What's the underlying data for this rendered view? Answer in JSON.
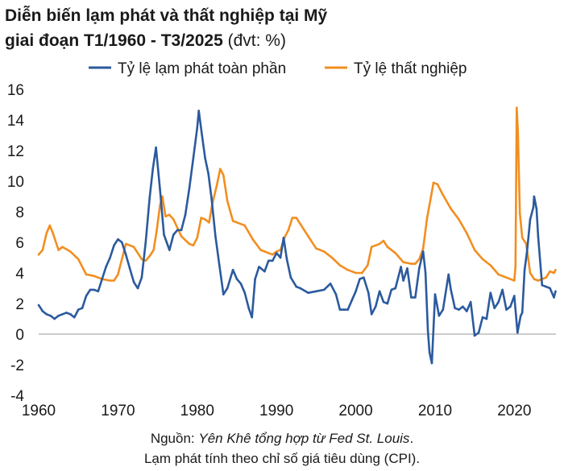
{
  "title": {
    "line1": "Diễn biến lạm phát và thất nghiệp tại Mỹ",
    "line2_bold": "giai đoạn T1/1960 - T3/2025",
    "line2_unit": " (đvt: %)"
  },
  "source": {
    "prefix": "Nguồn: ",
    "italic": "Yên Khê tổng hợp từ Fed St. Louis",
    "suffix": ".",
    "note": "Lạm phát tính theo chỉ số giá tiêu dùng (CPI)."
  },
  "colors": {
    "inflation": "#2b5a9e",
    "unemployment": "#f28e20",
    "zero_line": "#9a9a9a"
  },
  "chart_data": {
    "type": "line",
    "xlim": [
      1960,
      2025.25
    ],
    "ylim": [
      -4,
      16
    ],
    "x_ticks": [
      1960,
      1970,
      1980,
      1990,
      2000,
      2010,
      2020
    ],
    "y_ticks": [
      16,
      14,
      12,
      10,
      8,
      6,
      4,
      2,
      0,
      -2,
      -4
    ],
    "grid": false,
    "legend_position": "top",
    "series": [
      {
        "name": "Tỷ lệ lạm phát toàn phần",
        "color": "#2b5a9e",
        "x": [
          1960.0,
          1960.5,
          1961.0,
          1961.5,
          1962.0,
          1962.5,
          1963.0,
          1963.5,
          1964.0,
          1964.5,
          1965.0,
          1965.5,
          1966.0,
          1966.5,
          1967.0,
          1967.5,
          1968.0,
          1968.5,
          1969.0,
          1969.5,
          1970.0,
          1970.5,
          1971.0,
          1971.5,
          1972.0,
          1972.5,
          1973.0,
          1973.5,
          1974.0,
          1974.4,
          1974.8,
          1975.3,
          1975.8,
          1976.5,
          1977.0,
          1977.5,
          1978.0,
          1978.5,
          1979.0,
          1979.5,
          1980.0,
          1980.2,
          1980.6,
          1981.0,
          1981.4,
          1981.8,
          1982.3,
          1982.8,
          1983.3,
          1983.8,
          1984.5,
          1985.0,
          1985.5,
          1986.0,
          1986.5,
          1986.9,
          1987.3,
          1987.8,
          1988.5,
          1989.0,
          1989.5,
          1990.0,
          1990.5,
          1990.9,
          1991.3,
          1991.8,
          1992.5,
          1993.0,
          1994.0,
          1995.0,
          1996.0,
          1996.8,
          1997.5,
          1998.0,
          1998.5,
          1999.0,
          1999.5,
          2000.0,
          2000.5,
          2001.0,
          2001.6,
          2002.0,
          2002.5,
          2003.0,
          2003.5,
          2004.0,
          2004.5,
          2005.0,
          2005.7,
          2006.0,
          2006.5,
          2007.0,
          2007.5,
          2008.0,
          2008.5,
          2008.8,
          2009.1,
          2009.3,
          2009.6,
          2010.0,
          2010.5,
          2011.0,
          2011.7,
          2012.0,
          2012.5,
          2013.0,
          2013.5,
          2014.0,
          2014.5,
          2015.0,
          2015.5,
          2016.0,
          2016.5,
          2017.0,
          2017.5,
          2018.0,
          2018.5,
          2019.0,
          2019.5,
          2020.0,
          2020.4,
          2020.8,
          2021.0,
          2021.3,
          2021.6,
          2022.0,
          2022.4,
          2022.5,
          2022.8,
          2023.0,
          2023.5,
          2024.0,
          2024.5,
          2025.0,
          2025.2
        ],
        "values": [
          1.9,
          1.5,
          1.3,
          1.2,
          1.0,
          1.2,
          1.3,
          1.4,
          1.3,
          1.1,
          1.6,
          1.7,
          2.5,
          2.9,
          2.9,
          2.8,
          3.6,
          4.4,
          5.0,
          5.8,
          6.2,
          6.0,
          5.2,
          4.3,
          3.4,
          3.0,
          3.7,
          6.0,
          8.9,
          10.8,
          12.2,
          9.5,
          6.5,
          5.5,
          6.5,
          6.8,
          6.8,
          7.8,
          9.5,
          11.5,
          13.5,
          14.6,
          13.0,
          11.5,
          10.5,
          8.9,
          6.4,
          4.5,
          2.6,
          3.0,
          4.2,
          3.6,
          3.3,
          2.7,
          1.7,
          1.1,
          3.6,
          4.4,
          4.1,
          4.8,
          4.8,
          5.3,
          5.0,
          6.3,
          4.9,
          3.7,
          3.1,
          3.0,
          2.7,
          2.8,
          2.9,
          3.3,
          2.6,
          1.6,
          1.6,
          1.6,
          2.2,
          2.8,
          3.6,
          3.7,
          2.7,
          1.3,
          1.8,
          2.8,
          2.1,
          2.0,
          2.9,
          3.0,
          4.4,
          3.5,
          4.3,
          2.4,
          2.4,
          4.3,
          5.4,
          4.0,
          0.2,
          -1.2,
          -1.9,
          2.6,
          1.2,
          1.6,
          3.9,
          2.9,
          1.7,
          1.6,
          1.8,
          1.5,
          2.1,
          -0.1,
          0.1,
          1.1,
          1.0,
          2.7,
          1.7,
          2.1,
          2.9,
          1.6,
          1.8,
          2.5,
          0.1,
          1.2,
          1.4,
          4.2,
          5.4,
          7.5,
          8.3,
          9.0,
          8.2,
          6.4,
          3.2,
          3.1,
          3.0,
          2.4,
          2.8
        ]
      },
      {
        "name": "Tỷ lệ thất nghiệp",
        "color": "#f28e20",
        "x": [
          1960.0,
          1960.5,
          1961.0,
          1961.4,
          1961.8,
          1962.5,
          1963.0,
          1964.0,
          1965.0,
          1965.7,
          1966.0,
          1967.0,
          1968.0,
          1969.0,
          1969.5,
          1970.0,
          1970.5,
          1971.0,
          1972.0,
          1973.0,
          1973.5,
          1974.0,
          1974.5,
          1974.9,
          1975.3,
          1975.6,
          1976.0,
          1976.5,
          1977.0,
          1978.0,
          1979.0,
          1979.5,
          1980.0,
          1980.5,
          1981.0,
          1981.5,
          1981.9,
          1982.5,
          1982.9,
          1983.3,
          1983.8,
          1984.5,
          1985.0,
          1986.0,
          1987.0,
          1988.0,
          1989.0,
          1989.5,
          1990.0,
          1990.5,
          1991.0,
          1991.5,
          1992.0,
          1992.5,
          1993.0,
          1993.5,
          1994.0,
          1995.0,
          1996.0,
          1997.0,
          1998.0,
          1999.0,
          2000.0,
          2000.8,
          2001.5,
          2002.0,
          2002.5,
          2003.0,
          2003.5,
          2004.0,
          2005.0,
          2006.0,
          2007.0,
          2007.5,
          2008.0,
          2008.5,
          2009.0,
          2009.5,
          2009.8,
          2010.3,
          2011.0,
          2012.0,
          2013.0,
          2014.0,
          2015.0,
          2016.0,
          2017.0,
          2018.0,
          2019.0,
          2020.0,
          2020.15,
          2020.3,
          2020.45,
          2020.7,
          2021.0,
          2021.5,
          2022.0,
          2022.5,
          2023.0,
          2024.0,
          2024.5,
          2025.0,
          2025.2
        ],
        "values": [
          5.2,
          5.5,
          6.6,
          7.1,
          6.6,
          5.5,
          5.7,
          5.4,
          4.9,
          4.2,
          3.9,
          3.8,
          3.6,
          3.5,
          3.5,
          3.9,
          4.9,
          5.9,
          5.7,
          4.9,
          4.8,
          5.1,
          5.5,
          6.8,
          8.4,
          9.0,
          7.7,
          7.8,
          7.5,
          6.4,
          5.9,
          5.8,
          6.3,
          7.6,
          7.5,
          7.3,
          8.5,
          9.8,
          10.8,
          10.4,
          8.7,
          7.4,
          7.3,
          7.1,
          6.2,
          5.5,
          5.3,
          5.2,
          5.4,
          5.5,
          6.3,
          6.8,
          7.6,
          7.6,
          7.2,
          6.8,
          6.4,
          5.6,
          5.4,
          5.0,
          4.5,
          4.2,
          4.0,
          4.0,
          4.5,
          5.7,
          5.8,
          5.9,
          6.1,
          5.7,
          5.3,
          4.7,
          4.6,
          4.6,
          4.9,
          5.6,
          7.6,
          9.0,
          9.9,
          9.8,
          9.1,
          8.2,
          7.5,
          6.6,
          5.5,
          4.9,
          4.5,
          3.9,
          3.7,
          3.5,
          4.4,
          14.8,
          13.2,
          7.9,
          6.3,
          5.9,
          4.0,
          3.6,
          3.5,
          3.7,
          4.1,
          4.0,
          4.2
        ]
      }
    ]
  }
}
